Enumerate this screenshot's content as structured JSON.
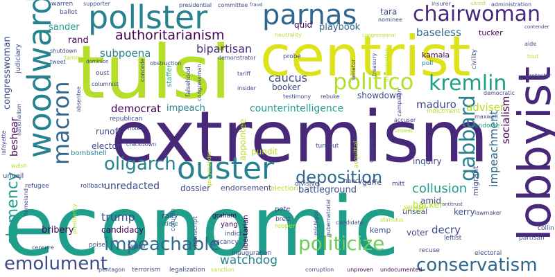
{
  "palette": {
    "deep_purple": "#440154",
    "indigo": "#482878",
    "blue": "#3e4a89",
    "steel": "#31688e",
    "teal": "#26828e",
    "green": "#1f9e89",
    "mint": "#35b779",
    "lime": "#6ece58",
    "yellow_green": "#b5de2b",
    "yellow": "#dde318"
  },
  "words": [
    "economic",
    "extremism",
    "tulsi",
    "centrist",
    "lobbyist",
    "woodward",
    "pollster",
    "parnas",
    "chairwoman",
    "ouster",
    "macron",
    "politico",
    "kremlin",
    "oligarch",
    "deposition",
    "gabbard",
    "impeachable",
    "politicize",
    "conservatism",
    "emolument",
    "clemency",
    "collusion",
    "authoritarianism",
    "impeachment",
    "socialism",
    "bipartisan",
    "caucus",
    "subpoena",
    "maduro",
    "democrat",
    "adviser",
    "counterintelligence",
    "trump",
    "watchdog",
    "unredacted",
    "baseless",
    "congresswoman",
    "playbook",
    "sander",
    "tara",
    "quid",
    "rand",
    "kamala",
    "poll",
    "tucker",
    "backer",
    "impeach",
    "beshear",
    "showdown",
    "booker",
    "runoff",
    "elector",
    "bombshell",
    "dossier",
    "endorsement",
    "election",
    "battleground",
    "pundit",
    "appointee",
    "inquiry",
    "migrant",
    "amid",
    "kerry",
    "unseal",
    "senate",
    "voter",
    "kemp",
    "decry",
    "bribery",
    "candidacy",
    "rally",
    "peddle",
    "yang",
    "graham",
    "libertarian",
    "indict",
    "pete",
    "brett",
    "reopen",
    "transcript",
    "vacancy",
    "inauguration",
    "column",
    "pentagon",
    "terrorism",
    "legalization",
    "sanction",
    "corruption",
    "unproven",
    "undocumented",
    "electoral",
    "recuse",
    "partisan",
    "lawmaker",
    "collin",
    "leftist",
    "refugee",
    "rollback",
    "gaffe",
    "divisive",
    "mitt",
    "nancy",
    "crackdown",
    "turnout",
    "acquittal",
    "congress",
    "unseat",
    "accuser",
    "endorse",
    "maxwell",
    "democratic",
    "indictment",
    "rebuke",
    "testimony",
    "staffer",
    "falsehood",
    "congressman",
    "columnist",
    "oust",
    "republican",
    "senator",
    "campaign",
    "insider",
    "tariff",
    "probe",
    "demonstrator",
    "spokeswoman",
    "concede",
    "obstruction",
    "dominion",
    "tammy",
    "tweet",
    "shutdown",
    "judiciary",
    "warren",
    "ballot",
    "supporter",
    "presidential",
    "committee",
    "fraud",
    "insurer",
    "unrest",
    "administration",
    "contender",
    "nominee",
    "neutrality",
    "congressional",
    "aide",
    "civility",
    "tout",
    "protester",
    "antitrust",
    "oversight",
    "stimulus",
    "michigan",
    "gubernatorial",
    "candidate",
    "rioter",
    "absentee",
    "lafayette",
    "nationalism",
    "homeland",
    "walsh",
    "unveil",
    "presidency",
    "poise",
    "tapper",
    "censure",
    "immigration",
    "treasury",
    "gerrymander"
  ]
}
